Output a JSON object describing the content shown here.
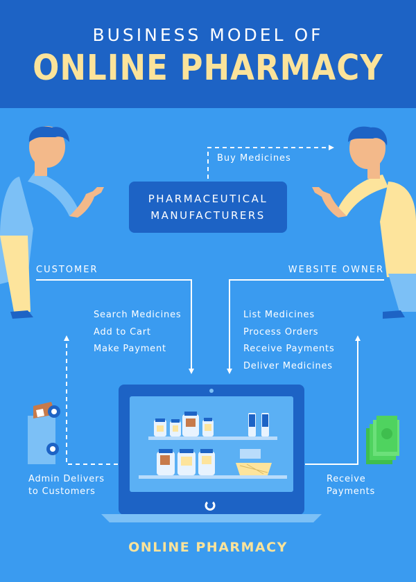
{
  "header": {
    "title_top": "BUSINESS MODEL OF",
    "title_main": "ONLINE PHARMACY"
  },
  "manufacturers": {
    "line1": "PHARMACEUTICAL",
    "line2": "MANUFACTURERS"
  },
  "flow": {
    "buy_medicines": "Buy Medicines",
    "customer": "CUSTOMER",
    "website_owner": "WEBSITE OWNER",
    "customer_steps": [
      "Search Medicines",
      "Add to Cart",
      "Make Payment"
    ],
    "owner_steps": [
      "List Medicines",
      "Process Orders",
      "Receive Payments",
      "Deliver Medicines"
    ],
    "admin_delivers": [
      "Admin Delivers",
      "to Customers"
    ],
    "receive_payments": [
      "Receive",
      "Payments"
    ]
  },
  "footer": {
    "label": "ONLINE PHARMACY"
  },
  "colors": {
    "background": "#3a9bf0",
    "header_bg": "#1d63c5",
    "accent_yellow": "#fbe39a",
    "box_blue": "#1d63c5"
  }
}
